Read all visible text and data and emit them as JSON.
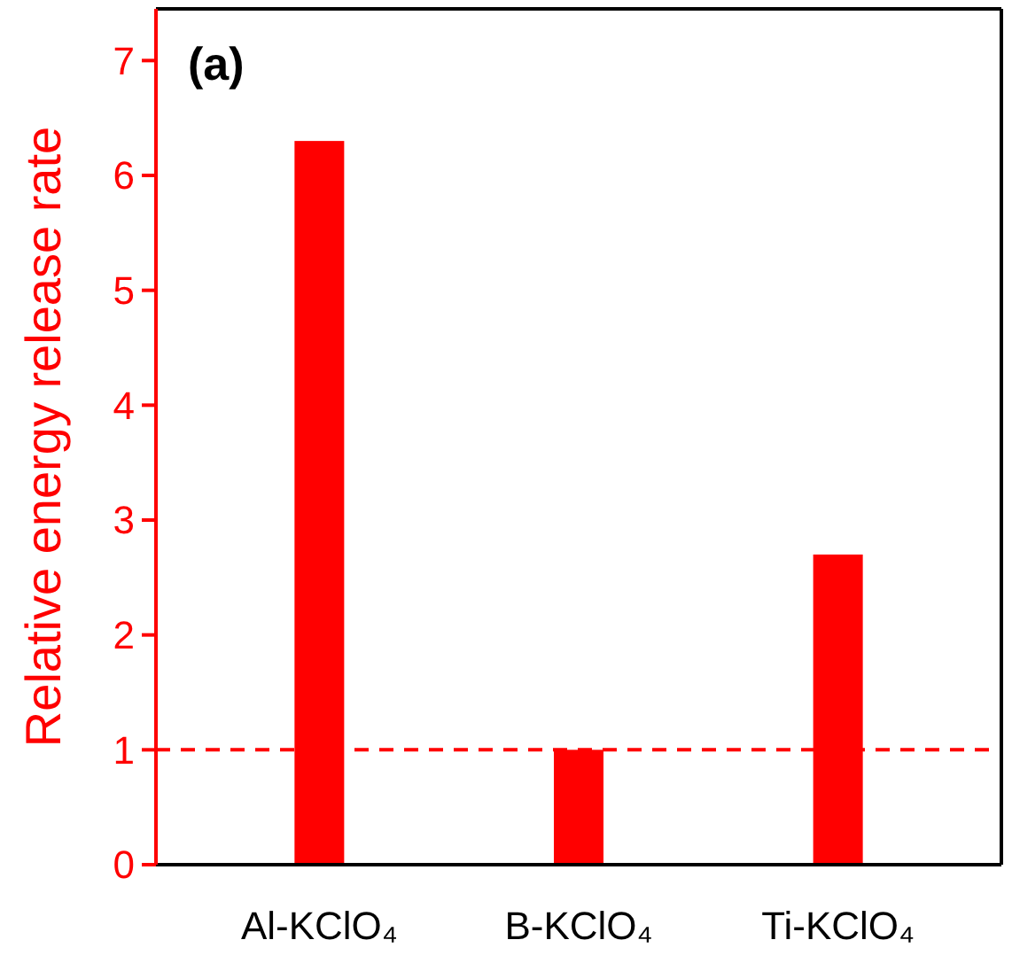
{
  "chart_data": {
    "type": "bar",
    "title": "(a)",
    "ylabel": "Relative energy release rate",
    "categories": [
      "Al-KClO₄",
      "B-KClO₄",
      "Ti-KClO₄"
    ],
    "values": [
      6.3,
      1.0,
      2.7
    ],
    "color": "#ff0000",
    "ylim": [
      0,
      7.45
    ],
    "yticks": [
      0,
      1,
      2,
      3,
      4,
      5,
      6,
      7
    ],
    "ref_lines": [
      {
        "axis": "y",
        "value": 1,
        "color": "#ff0000",
        "line_style": "dashed"
      }
    ],
    "grid": false
  }
}
